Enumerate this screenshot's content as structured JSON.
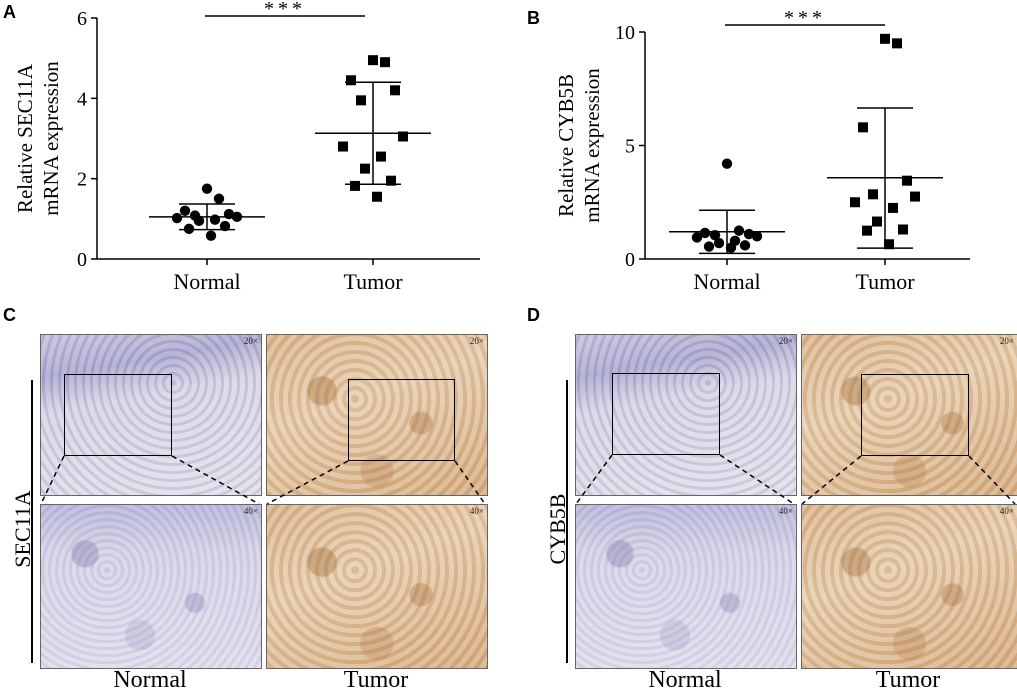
{
  "panels": {
    "A": "A",
    "B": "B",
    "C": "C",
    "D": "D"
  },
  "chart_data": [
    {
      "type": "scatter",
      "panel": "A",
      "ylabel": "Relative SEC11A mRNA expression",
      "ylabel_lines": [
        "Relative SEC11A",
        "mRNA expression"
      ],
      "xlabel": "",
      "categories": [
        "Normal",
        "Tumor"
      ],
      "ylim": [
        0,
        6
      ],
      "yticks": [
        0,
        2,
        4,
        6
      ],
      "significance": "***",
      "series": [
        {
          "name": "Normal",
          "marker": "circle",
          "values": [
            1.75,
            1.5,
            1.2,
            1.12,
            1.08,
            1.05,
            1.02,
            0.98,
            0.95,
            0.82,
            0.75,
            0.58
          ],
          "mean": 1.05,
          "sd_upper": 1.37,
          "sd_lower": 0.73
        },
        {
          "name": "Tumor",
          "marker": "square",
          "values": [
            4.95,
            4.9,
            4.45,
            4.2,
            3.95,
            3.05,
            2.8,
            2.55,
            2.25,
            1.95,
            1.82,
            1.55
          ],
          "mean": 3.13,
          "sd_upper": 4.4,
          "sd_lower": 1.86
        }
      ]
    },
    {
      "type": "scatter",
      "panel": "B",
      "ylabel": "Relative CYB5B mRNA expression",
      "ylabel_lines": [
        "Relative CYB5B",
        "mRNA expression"
      ],
      "xlabel": "",
      "categories": [
        "Normal",
        "Tumor"
      ],
      "ylim": [
        0,
        10
      ],
      "yticks": [
        0,
        5,
        10
      ],
      "significance": "***",
      "series": [
        {
          "name": "Normal",
          "marker": "circle",
          "values": [
            4.2,
            1.25,
            1.15,
            1.1,
            1.05,
            1.0,
            0.95,
            0.8,
            0.7,
            0.6,
            0.55,
            0.5
          ],
          "mean": 1.2,
          "sd_upper": 2.15,
          "sd_lower": 0.25
        },
        {
          "name": "Tumor",
          "marker": "square",
          "values": [
            9.7,
            9.5,
            5.8,
            3.45,
            2.85,
            2.75,
            2.5,
            2.25,
            1.65,
            1.3,
            1.25,
            0.65
          ],
          "mean": 3.58,
          "sd_upper": 6.65,
          "sd_lower": 0.48
        }
      ]
    }
  ],
  "micrographs": {
    "C": {
      "row_label": "SEC11A",
      "col_labels": [
        "Normal",
        "Tumor"
      ],
      "mag_low": "20×",
      "mag_high": "40×"
    },
    "D": {
      "row_label": "CYB5B",
      "col_labels": [
        "Normal",
        "Tumor"
      ],
      "mag_low": "20×",
      "mag_high": "40×"
    }
  },
  "colors": {
    "marker": "#000000",
    "normal_stain": "#c9c6de",
    "tumor_stain": "#d9b690"
  }
}
